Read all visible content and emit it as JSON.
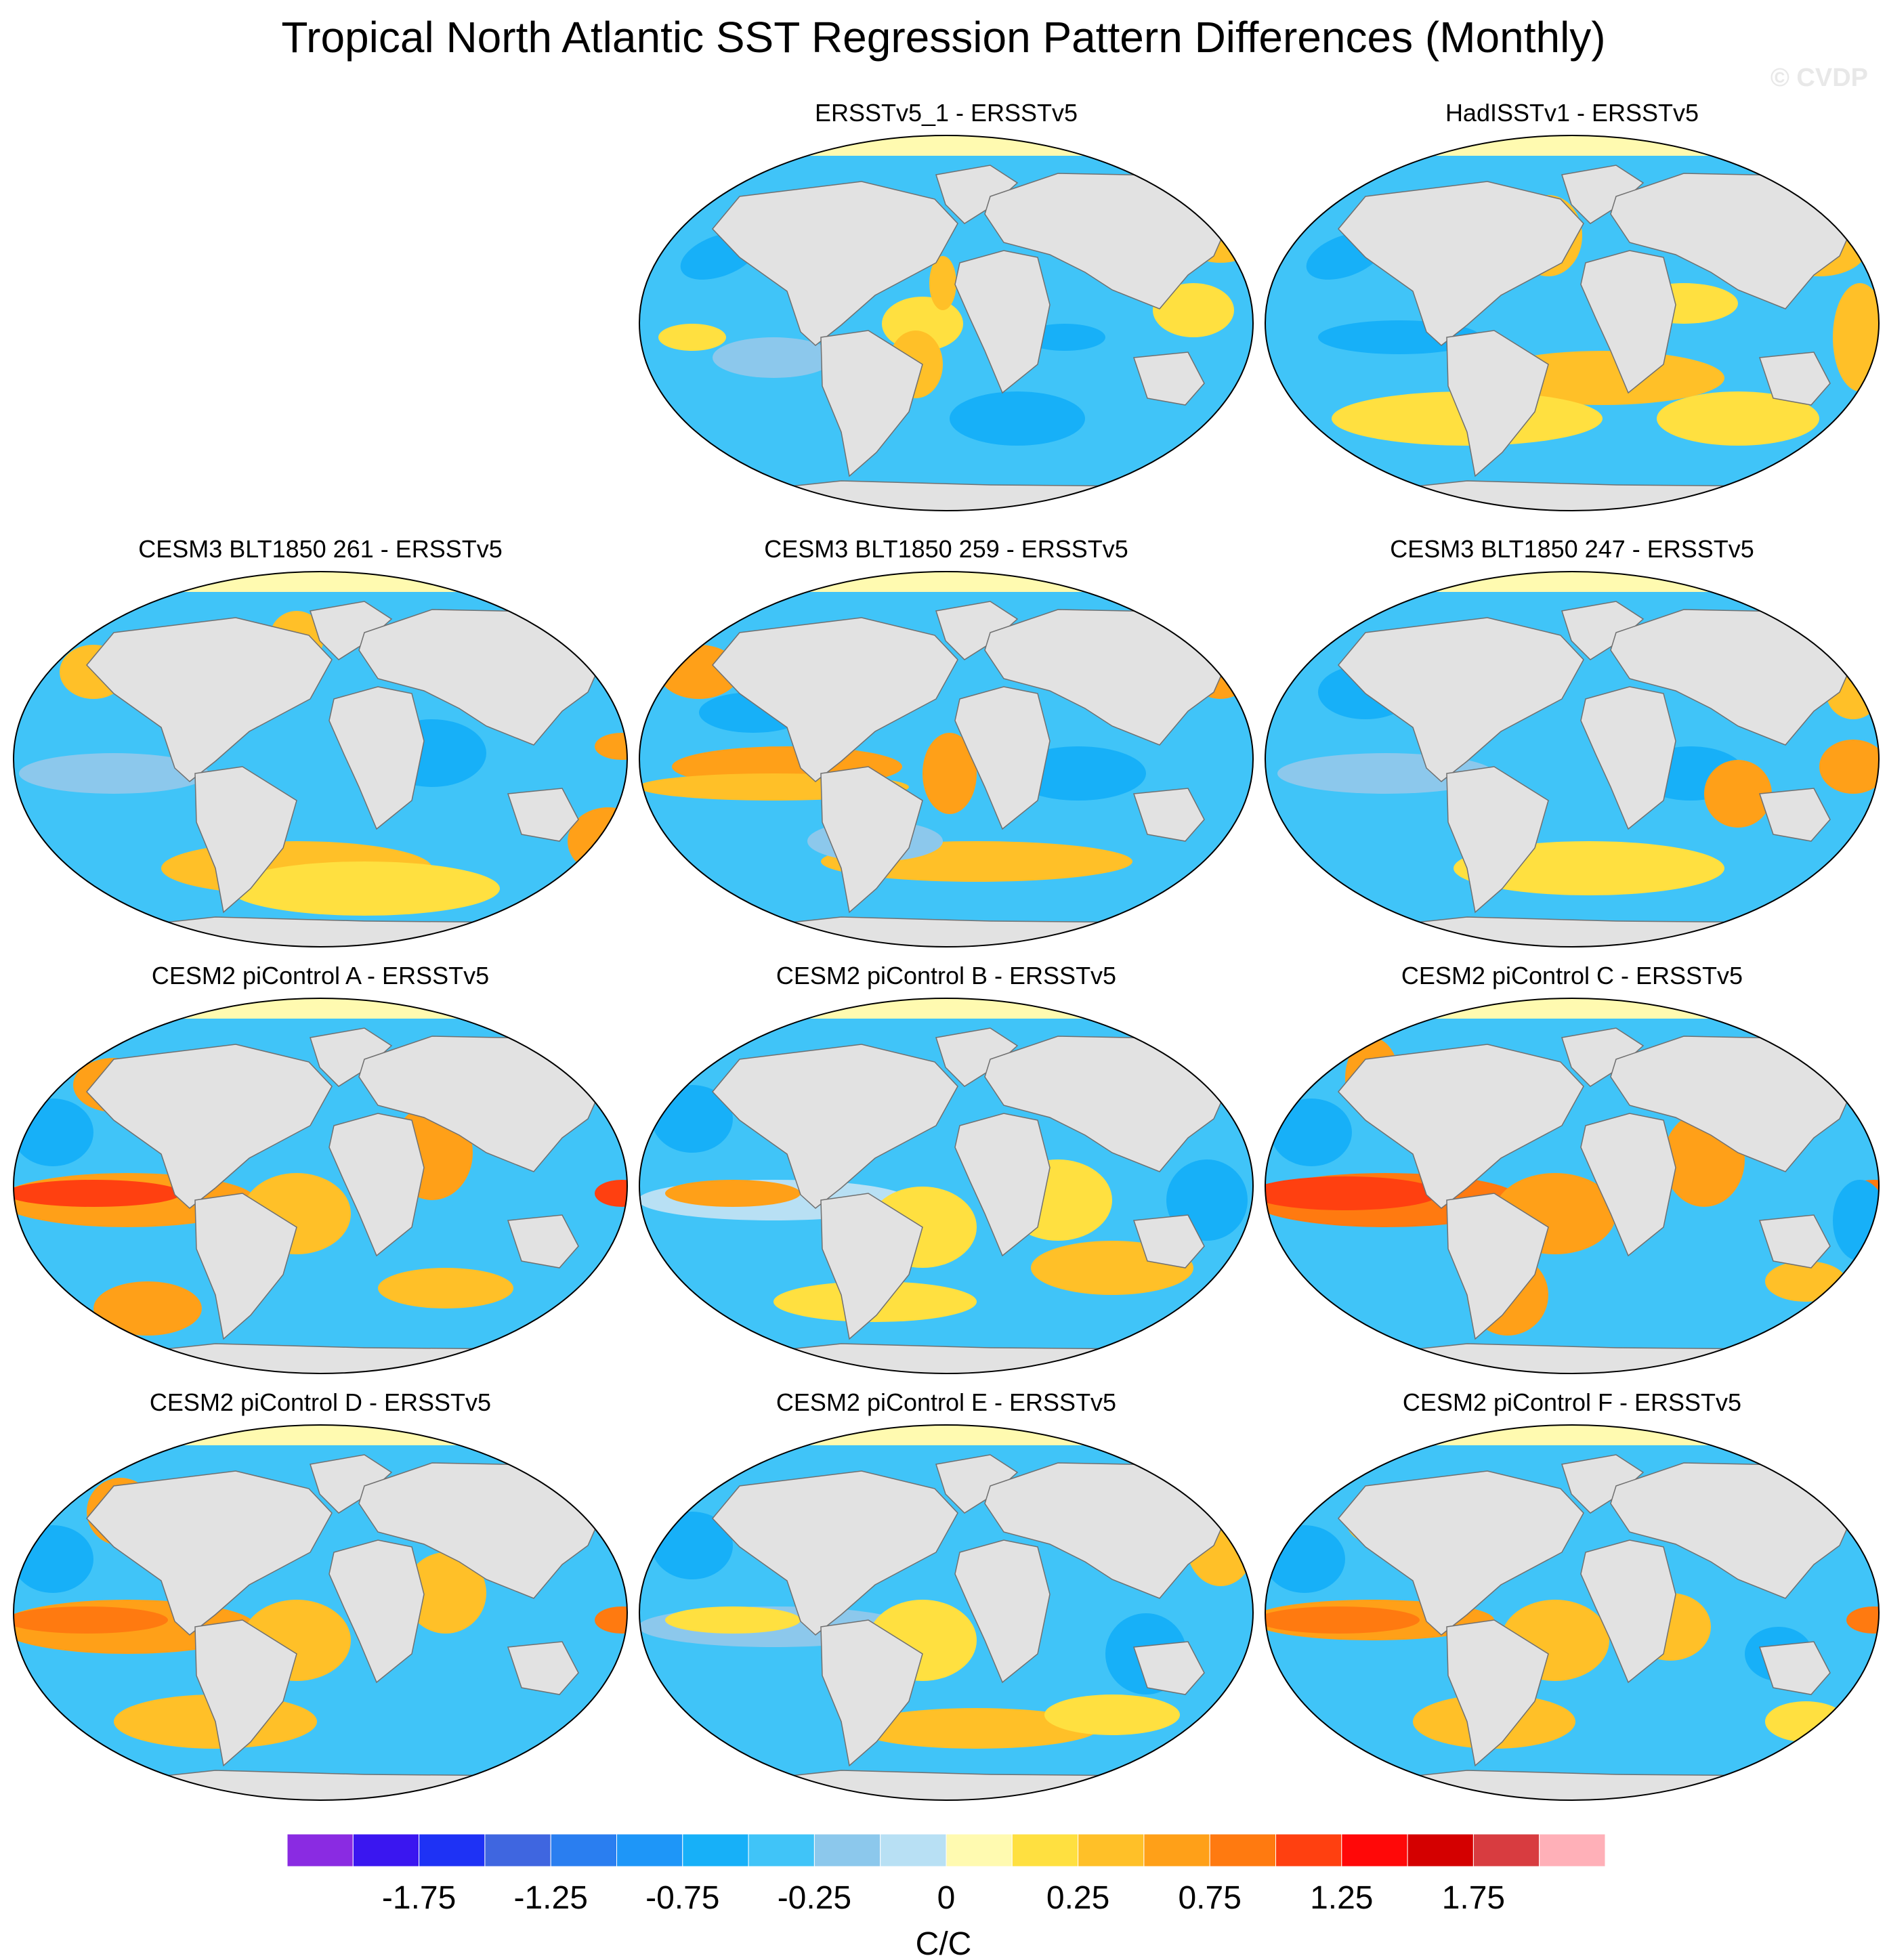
{
  "title": "Tropical North Atlantic SST Regression Pattern Differences (Monthly)",
  "credit": "© CVDP",
  "panels": [
    {
      "title": "ERSSTv5_1 - ERSSTv5",
      "pattern": "obs1"
    },
    {
      "title": "HadISSTv1 - ERSSTv5",
      "pattern": "obs2"
    },
    {
      "title": "CESM3 BLT1850 261 - ERSSTv5",
      "pattern": "blt1"
    },
    {
      "title": "CESM3 BLT1850 259 - ERSSTv5",
      "pattern": "blt2"
    },
    {
      "title": "CESM3 BLT1850 247 - ERSSTv5",
      "pattern": "blt3"
    },
    {
      "title": "CESM2 piControl A - ERSSTv5",
      "pattern": "pi_strong"
    },
    {
      "title": "CESM2 piControl B - ERSSTv5",
      "pattern": "pi_weak"
    },
    {
      "title": "CESM2 piControl C - ERSSTv5",
      "pattern": "pi_strong2"
    },
    {
      "title": "CESM2 piControl D - ERSSTv5",
      "pattern": "pi_mid"
    },
    {
      "title": "CESM2 piControl E - ERSSTv5",
      "pattern": "pi_weak2"
    },
    {
      "title": "CESM2 piControl F - ERSSTv5",
      "pattern": "pi_mid2"
    }
  ],
  "chart_data": {
    "type": "heatmap",
    "projection": "robinson",
    "layout": "4 rows x 3 columns, first cell empty",
    "colorbar": {
      "unit_label": "C/C",
      "tick_labels": [
        "-1.75",
        "-1.25",
        "-0.75",
        "-0.25",
        "0",
        "0.25",
        "0.75",
        "1.25",
        "1.75"
      ],
      "levels": [
        -2.0,
        -1.75,
        -1.5,
        -1.25,
        -1.0,
        -0.75,
        -0.5,
        -0.25,
        -0.1,
        0,
        0.1,
        0.25,
        0.5,
        0.75,
        1.0,
        1.25,
        1.5,
        1.75,
        2.0
      ],
      "colors": [
        "#8a2be2",
        "#3a16f0",
        "#1e32f5",
        "#3f66e0",
        "#2a7ef0",
        "#1e96f8",
        "#17b0f8",
        "#40c4f8",
        "#8cc8ec",
        "#b8e0f4",
        "#fffab0",
        "#ffe040",
        "#ffc028",
        "#ffa018",
        "#ff7a10",
        "#ff4010",
        "#ff0808",
        "#d40000",
        "#d83c40",
        "#ffb0b8"
      ]
    }
  }
}
